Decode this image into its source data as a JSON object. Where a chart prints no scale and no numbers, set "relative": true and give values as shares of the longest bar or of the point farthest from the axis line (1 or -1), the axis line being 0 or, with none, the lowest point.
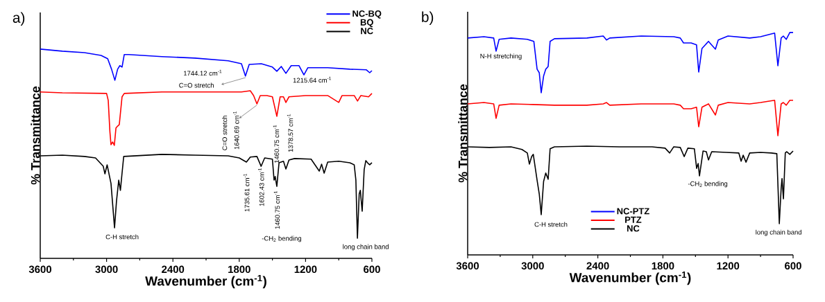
{
  "chart_data": [
    {
      "type": "line",
      "title": "a)",
      "xlabel": "Wavenumber (cm$^{-1}$)",
      "ylabel": "% Transmittance",
      "relative": true,
      "xlim": [
        3600,
        600
      ],
      "xticks": [
        3600,
        3000,
        2400,
        1800,
        1200,
        600
      ],
      "legend": "top right",
      "series": [
        {
          "name": "NC-BQ",
          "color": "#0000ff",
          "x": [
            3600,
            3400,
            3200,
            3050,
            2990,
            2955,
            2925,
            2900,
            2880,
            2860,
            2840,
            2800,
            2500,
            2200,
            1900,
            1780,
            1744,
            1710,
            1600,
            1500,
            1460,
            1420,
            1378,
            1330,
            1260,
            1215,
            1180,
            1000,
            800,
            650,
            620,
            600
          ],
          "values": [
            1.0,
            0.99,
            0.983,
            0.97,
            0.954,
            0.904,
            0.851,
            0.904,
            0.921,
            0.914,
            0.974,
            0.974,
            0.964,
            0.957,
            0.944,
            0.93,
            0.871,
            0.927,
            0.93,
            0.914,
            0.894,
            0.917,
            0.884,
            0.921,
            0.921,
            0.877,
            0.911,
            0.911,
            0.904,
            0.901,
            0.887,
            0.897
          ]
        },
        {
          "name": "BQ",
          "color": "#ff0000",
          "x": [
            3600,
            3400,
            3000,
            2985,
            2970,
            2960,
            2945,
            2930,
            2915,
            2900,
            2885,
            2860,
            2840,
            2500,
            2000,
            1780,
            1700,
            1670,
            1640,
            1610,
            1550,
            1500,
            1460,
            1430,
            1400,
            1378,
            1350,
            1200,
            1000,
            900,
            870,
            760,
            730,
            700,
            630,
            600
          ],
          "values": [
            0.795,
            0.791,
            0.788,
            0.755,
            0.606,
            0.543,
            0.556,
            0.54,
            0.623,
            0.632,
            0.639,
            0.772,
            0.788,
            0.795,
            0.795,
            0.795,
            0.801,
            0.778,
            0.738,
            0.778,
            0.778,
            0.772,
            0.679,
            0.772,
            0.772,
            0.745,
            0.772,
            0.778,
            0.778,
            0.745,
            0.778,
            0.778,
            0.752,
            0.778,
            0.772,
            0.788
          ]
        },
        {
          "name": "NC",
          "color": "#000000",
          "x": [
            3600,
            3400,
            3200,
            3100,
            3030,
            3015,
            2995,
            2960,
            2928,
            2910,
            2890,
            2875,
            2860,
            2845,
            2500,
            2200,
            1900,
            1800,
            1735,
            1700,
            1640,
            1602,
            1570,
            1500,
            1485,
            1475,
            1460,
            1440,
            1400,
            1378,
            1350,
            1300,
            1150,
            1076,
            1055,
            1032,
            1000,
            900,
            800,
            760,
            745,
            731,
            715,
            705,
            688,
            670,
            655,
            635,
            620,
            600
          ],
          "values": [
            0.49,
            0.493,
            0.487,
            0.48,
            0.44,
            0.404,
            0.447,
            0.358,
            0.146,
            0.275,
            0.374,
            0.325,
            0.407,
            0.487,
            0.497,
            0.493,
            0.49,
            0.48,
            0.46,
            0.484,
            0.487,
            0.44,
            0.48,
            0.474,
            0.374,
            0.391,
            0.344,
            0.457,
            0.464,
            0.427,
            0.47,
            0.477,
            0.474,
            0.417,
            0.45,
            0.407,
            0.46,
            0.464,
            0.457,
            0.447,
            0.374,
            0.096,
            0.308,
            0.325,
            0.225,
            0.424,
            0.467,
            0.454,
            0.447,
            0.457
          ]
        }
      ],
      "annotations": [
        "1744.12 cm$^{-1}$",
        "C=O stretch",
        {
          "text": "1215.64 cm$^{-1}$",
          "x": 1215,
          "y": 0.877
        },
        "C=O stretch",
        {
          "text": "1640.69 cm$^{-1}$",
          "x": 1640,
          "y": 0.738
        },
        {
          "text": "1460.75 cm$^{-1}$",
          "x": 1460,
          "y": 0.679
        },
        {
          "text": "1378.57 cm$^{-1}$",
          "x": 1378,
          "y": 0.745
        },
        {
          "text": "1735.61 cm$^{-1}$",
          "x": 1735,
          "y": 0.46
        },
        {
          "text": "1602.43 cm$^{-1}$",
          "x": 1602,
          "y": 0.44
        },
        {
          "text": "1460.75 cm$^{-1}$",
          "x": 1460,
          "y": 0.344
        },
        {
          "text": "C-H stretch",
          "x": 2928,
          "y": 0.146
        },
        "-CH$_{2}$ bending",
        {
          "text": "long chain band",
          "x": 731,
          "y": 0.096
        }
      ]
    },
    {
      "type": "line",
      "title": "b)",
      "xlabel": "Wavenumber (cm$^{-1}$)",
      "ylabel": "% Transmittance",
      "relative": true,
      "xlim": [
        3600,
        600
      ],
      "xticks": [
        3600,
        3000,
        2400,
        1800,
        1200,
        600
      ],
      "legend": "bottom",
      "series": [
        {
          "name": "NC-PTZ",
          "color": "#0000ff",
          "x": [
            3600,
            3450,
            3360,
            3338,
            3310,
            3200,
            3050,
            2990,
            2960,
            2940,
            2922,
            2900,
            2880,
            2858,
            2840,
            2800,
            2500,
            2350,
            2320,
            2290,
            2000,
            1700,
            1640,
            1610,
            1540,
            1490,
            1470,
            1440,
            1380,
            1316,
            1290,
            1200,
            1000,
            900,
            770,
            740,
            710,
            690,
            663,
            630,
            600
          ],
          "values": [
            0.975,
            0.981,
            0.975,
            0.916,
            0.969,
            0.975,
            0.969,
            0.96,
            0.835,
            0.819,
            0.729,
            0.804,
            0.835,
            0.847,
            0.96,
            0.972,
            0.975,
            0.984,
            0.966,
            0.975,
            0.984,
            0.981,
            0.975,
            0.953,
            0.953,
            0.944,
            0.822,
            0.928,
            0.96,
            0.925,
            0.966,
            0.984,
            0.975,
            0.981,
            0.997,
            0.85,
            0.975,
            0.984,
            0.969,
            1.0,
            1.0
          ]
        },
        {
          "name": "PTZ",
          "color": "#ff0000",
          "x": [
            3600,
            3450,
            3360,
            3338,
            3310,
            3200,
            3000,
            2800,
            2500,
            2350,
            2320,
            2290,
            2000,
            1700,
            1640,
            1610,
            1540,
            1490,
            1470,
            1440,
            1380,
            1316,
            1290,
            1200,
            1000,
            900,
            770,
            740,
            710,
            690,
            663,
            630,
            600
          ],
          "values": [
            0.679,
            0.685,
            0.679,
            0.614,
            0.673,
            0.679,
            0.676,
            0.673,
            0.673,
            0.679,
            0.685,
            0.673,
            0.679,
            0.679,
            0.673,
            0.657,
            0.657,
            0.664,
            0.576,
            0.664,
            0.679,
            0.629,
            0.673,
            0.685,
            0.679,
            0.685,
            0.695,
            0.536,
            0.679,
            0.685,
            0.673,
            0.695,
            0.695
          ]
        },
        {
          "name": "NC",
          "color": "#000000",
          "x": [
            3600,
            3400,
            3200,
            3100,
            3050,
            3031,
            3010,
            2995,
            2960,
            2940,
            2922,
            2900,
            2880,
            2858,
            2840,
            2800,
            2500,
            2200,
            1900,
            1780,
            1738,
            1700,
            1640,
            1604,
            1570,
            1510,
            1489,
            1475,
            1463,
            1430,
            1400,
            1380,
            1350,
            1216,
            1100,
            1079,
            1060,
            1034,
            1000,
            900,
            800,
            750,
            727,
            710,
            702,
            689,
            672,
            660,
            630,
            600
          ],
          "values": [
            0.486,
            0.483,
            0.486,
            0.474,
            0.458,
            0.408,
            0.442,
            0.452,
            0.336,
            0.274,
            0.181,
            0.33,
            0.368,
            0.34,
            0.477,
            0.486,
            0.489,
            0.486,
            0.486,
            0.48,
            0.458,
            0.486,
            0.483,
            0.442,
            0.48,
            0.477,
            0.389,
            0.411,
            0.355,
            0.467,
            0.464,
            0.427,
            0.464,
            0.461,
            0.458,
            0.421,
            0.448,
            0.417,
            0.458,
            0.461,
            0.458,
            0.455,
            0.14,
            0.3,
            0.343,
            0.252,
            0.458,
            0.464,
            0.452,
            0.467
          ]
        }
      ],
      "annotations": [
        {
          "text": "N-H stretching",
          "x": 3338,
          "y": 0.916
        },
        {
          "text": "C-H stretch",
          "x": 2922,
          "y": 0.181
        },
        {
          "text": "-CH$_{2}$ bending",
          "x": 1463,
          "y": 0.355
        },
        {
          "text": "long chain band",
          "x": 727,
          "y": 0.14
        }
      ]
    }
  ]
}
